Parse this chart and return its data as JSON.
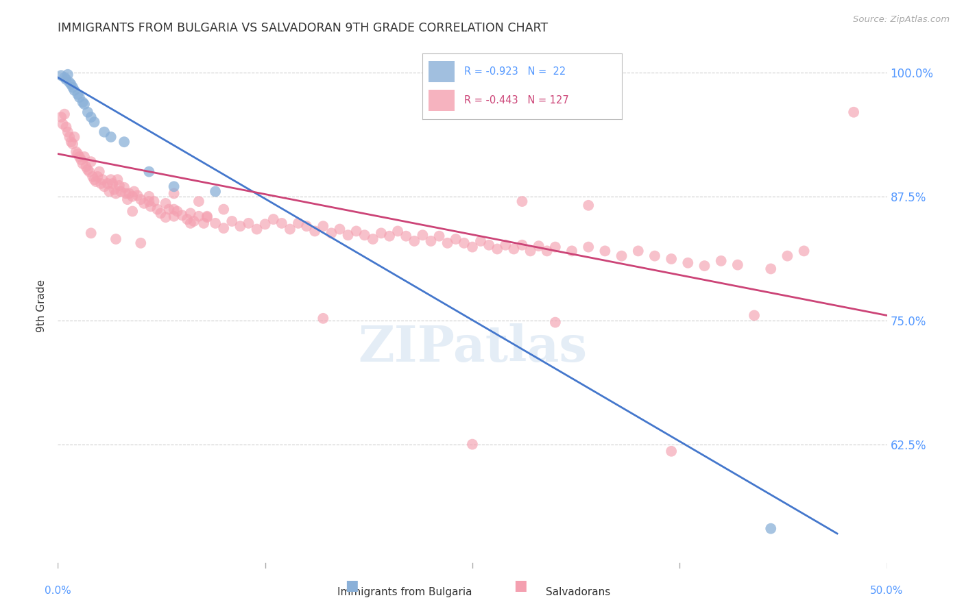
{
  "title": "IMMIGRANTS FROM BULGARIA VS SALVADORAN 9TH GRADE CORRELATION CHART",
  "source": "Source: ZipAtlas.com",
  "ylabel": "9th Grade",
  "xlim": [
    0.0,
    0.5
  ],
  "ylim": [
    0.5,
    1.03
  ],
  "yticks": [
    0.625,
    0.75,
    0.875,
    1.0
  ],
  "ytick_labels": [
    "62.5%",
    "75.0%",
    "87.5%",
    "100.0%"
  ],
  "xtick_positions": [
    0.0,
    0.125,
    0.25,
    0.375,
    0.5
  ],
  "xtick_labels": [
    "0.0%",
    "",
    "",
    "",
    "50.0%"
  ],
  "grid_color": "#cccccc",
  "background_color": "#ffffff",
  "watermark": "ZIPatlas",
  "legend_r_blue": "-0.923",
  "legend_n_blue": "22",
  "legend_r_pink": "-0.443",
  "legend_n_pink": "127",
  "blue_color": "#8ab0d8",
  "pink_color": "#f4a0b0",
  "blue_line_color": "#4477cc",
  "pink_line_color": "#cc4477",
  "title_color": "#333333",
  "axis_label_color": "#333333",
  "right_tick_color": "#5599ff",
  "blue_line": [
    [
      0.0,
      0.995
    ],
    [
      0.47,
      0.535
    ]
  ],
  "pink_line": [
    [
      0.0,
      0.918
    ],
    [
      0.5,
      0.755
    ]
  ],
  "blue_scatter": [
    [
      0.002,
      0.997
    ],
    [
      0.004,
      0.995
    ],
    [
      0.005,
      0.993
    ],
    [
      0.006,
      0.998
    ],
    [
      0.007,
      0.99
    ],
    [
      0.008,
      0.988
    ],
    [
      0.009,
      0.985
    ],
    [
      0.01,
      0.982
    ],
    [
      0.012,
      0.978
    ],
    [
      0.013,
      0.975
    ],
    [
      0.015,
      0.97
    ],
    [
      0.016,
      0.968
    ],
    [
      0.018,
      0.96
    ],
    [
      0.02,
      0.955
    ],
    [
      0.022,
      0.95
    ],
    [
      0.028,
      0.94
    ],
    [
      0.032,
      0.935
    ],
    [
      0.04,
      0.93
    ],
    [
      0.055,
      0.9
    ],
    [
      0.07,
      0.885
    ],
    [
      0.095,
      0.88
    ],
    [
      0.43,
      0.54
    ]
  ],
  "pink_scatter": [
    [
      0.002,
      0.955
    ],
    [
      0.003,
      0.948
    ],
    [
      0.004,
      0.958
    ],
    [
      0.005,
      0.945
    ],
    [
      0.006,
      0.94
    ],
    [
      0.007,
      0.935
    ],
    [
      0.008,
      0.93
    ],
    [
      0.009,
      0.928
    ],
    [
      0.01,
      0.935
    ],
    [
      0.011,
      0.92
    ],
    [
      0.012,
      0.918
    ],
    [
      0.013,
      0.915
    ],
    [
      0.014,
      0.912
    ],
    [
      0.015,
      0.908
    ],
    [
      0.016,
      0.915
    ],
    [
      0.017,
      0.905
    ],
    [
      0.018,
      0.902
    ],
    [
      0.019,
      0.9
    ],
    [
      0.02,
      0.91
    ],
    [
      0.021,
      0.895
    ],
    [
      0.022,
      0.892
    ],
    [
      0.023,
      0.89
    ],
    [
      0.024,
      0.895
    ],
    [
      0.025,
      0.9
    ],
    [
      0.026,
      0.888
    ],
    [
      0.027,
      0.892
    ],
    [
      0.028,
      0.885
    ],
    [
      0.03,
      0.888
    ],
    [
      0.031,
      0.88
    ],
    [
      0.032,
      0.892
    ],
    [
      0.033,
      0.888
    ],
    [
      0.034,
      0.882
    ],
    [
      0.035,
      0.878
    ],
    [
      0.036,
      0.892
    ],
    [
      0.037,
      0.886
    ],
    [
      0.038,
      0.88
    ],
    [
      0.04,
      0.884
    ],
    [
      0.041,
      0.878
    ],
    [
      0.042,
      0.872
    ],
    [
      0.043,
      0.878
    ],
    [
      0.045,
      0.875
    ],
    [
      0.046,
      0.88
    ],
    [
      0.048,
      0.876
    ],
    [
      0.05,
      0.872
    ],
    [
      0.052,
      0.868
    ],
    [
      0.055,
      0.875
    ],
    [
      0.056,
      0.865
    ],
    [
      0.058,
      0.87
    ],
    [
      0.06,
      0.862
    ],
    [
      0.062,
      0.858
    ],
    [
      0.065,
      0.868
    ],
    [
      0.067,
      0.862
    ],
    [
      0.07,
      0.855
    ],
    [
      0.072,
      0.86
    ],
    [
      0.075,
      0.856
    ],
    [
      0.078,
      0.852
    ],
    [
      0.08,
      0.858
    ],
    [
      0.082,
      0.85
    ],
    [
      0.085,
      0.855
    ],
    [
      0.088,
      0.848
    ],
    [
      0.09,
      0.854
    ],
    [
      0.095,
      0.848
    ],
    [
      0.1,
      0.843
    ],
    [
      0.105,
      0.85
    ],
    [
      0.11,
      0.845
    ],
    [
      0.115,
      0.848
    ],
    [
      0.12,
      0.842
    ],
    [
      0.125,
      0.847
    ],
    [
      0.13,
      0.852
    ],
    [
      0.135,
      0.848
    ],
    [
      0.14,
      0.842
    ],
    [
      0.145,
      0.848
    ],
    [
      0.15,
      0.845
    ],
    [
      0.155,
      0.84
    ],
    [
      0.16,
      0.845
    ],
    [
      0.165,
      0.838
    ],
    [
      0.17,
      0.842
    ],
    [
      0.175,
      0.836
    ],
    [
      0.18,
      0.84
    ],
    [
      0.185,
      0.836
    ],
    [
      0.19,
      0.832
    ],
    [
      0.195,
      0.838
    ],
    [
      0.2,
      0.835
    ],
    [
      0.205,
      0.84
    ],
    [
      0.21,
      0.835
    ],
    [
      0.215,
      0.83
    ],
    [
      0.22,
      0.836
    ],
    [
      0.225,
      0.83
    ],
    [
      0.23,
      0.835
    ],
    [
      0.235,
      0.828
    ],
    [
      0.24,
      0.832
    ],
    [
      0.245,
      0.828
    ],
    [
      0.25,
      0.824
    ],
    [
      0.255,
      0.83
    ],
    [
      0.26,
      0.826
    ],
    [
      0.265,
      0.822
    ],
    [
      0.27,
      0.826
    ],
    [
      0.275,
      0.822
    ],
    [
      0.28,
      0.826
    ],
    [
      0.285,
      0.82
    ],
    [
      0.29,
      0.825
    ],
    [
      0.295,
      0.82
    ],
    [
      0.3,
      0.824
    ],
    [
      0.31,
      0.82
    ],
    [
      0.32,
      0.824
    ],
    [
      0.33,
      0.82
    ],
    [
      0.34,
      0.815
    ],
    [
      0.35,
      0.82
    ],
    [
      0.36,
      0.815
    ],
    [
      0.37,
      0.812
    ],
    [
      0.38,
      0.808
    ],
    [
      0.39,
      0.805
    ],
    [
      0.4,
      0.81
    ],
    [
      0.41,
      0.806
    ],
    [
      0.43,
      0.802
    ],
    [
      0.44,
      0.815
    ],
    [
      0.45,
      0.82
    ],
    [
      0.055,
      0.87
    ],
    [
      0.07,
      0.862
    ],
    [
      0.09,
      0.855
    ],
    [
      0.02,
      0.838
    ],
    [
      0.035,
      0.832
    ],
    [
      0.05,
      0.828
    ],
    [
      0.07,
      0.878
    ],
    [
      0.085,
      0.87
    ],
    [
      0.1,
      0.862
    ],
    [
      0.045,
      0.86
    ],
    [
      0.065,
      0.854
    ],
    [
      0.08,
      0.848
    ],
    [
      0.48,
      0.96
    ],
    [
      0.16,
      0.752
    ],
    [
      0.3,
      0.748
    ],
    [
      0.42,
      0.755
    ],
    [
      0.25,
      0.625
    ],
    [
      0.37,
      0.618
    ],
    [
      0.28,
      0.87
    ],
    [
      0.32,
      0.866
    ]
  ]
}
